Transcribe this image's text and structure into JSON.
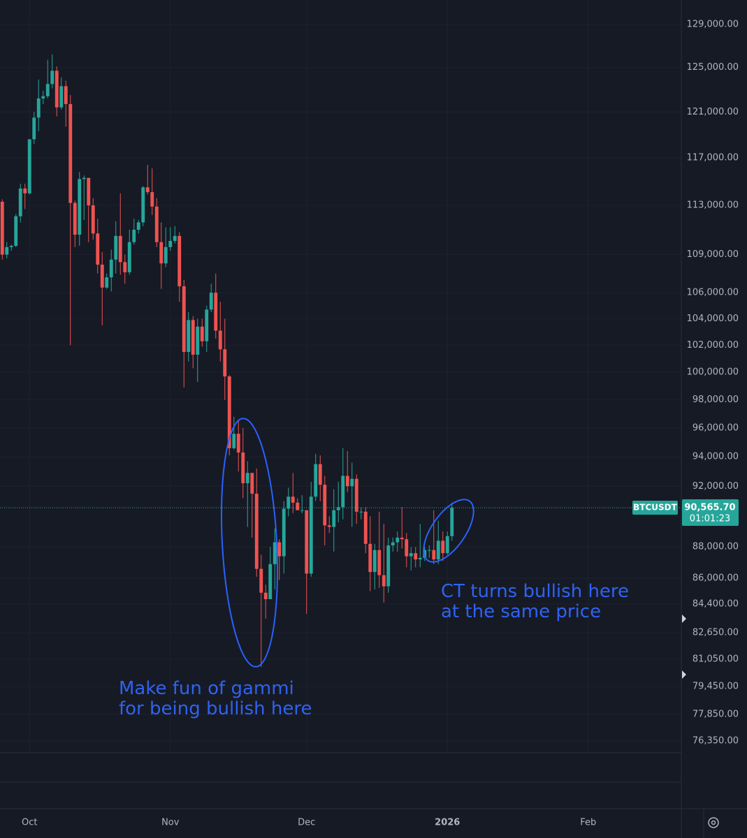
{
  "chart_data": {
    "type": "candlestick",
    "symbol": "BTCUSDT",
    "last_price_label": "90,565.70",
    "countdown": "01:01:23",
    "up_color": "#26a69a",
    "down_color": "#ef5350",
    "log_y": true,
    "grid": true,
    "x": [
      -6,
      -5,
      -4,
      -3,
      -2,
      -1,
      0,
      1,
      2,
      3,
      4,
      5,
      6,
      7,
      8,
      9,
      10,
      11,
      12,
      13,
      14,
      15,
      16,
      17,
      18,
      19,
      20,
      21,
      22,
      23,
      24,
      25,
      26,
      27,
      28,
      29,
      30,
      31,
      32,
      33,
      34,
      35,
      36,
      37,
      38,
      39,
      40,
      41,
      42,
      43,
      44,
      45,
      46,
      47,
      48,
      49,
      50,
      51,
      52,
      53,
      54,
      55,
      56,
      57,
      58,
      59,
      60,
      61,
      62,
      63,
      64,
      65,
      66,
      67,
      68,
      69,
      70,
      71,
      72,
      73,
      74,
      75,
      76,
      77,
      78,
      79,
      80,
      81,
      82,
      83,
      84,
      85,
      86,
      87,
      88,
      89,
      90,
      91,
      92,
      93
    ],
    "open": [
      113300,
      109000,
      109600,
      109700,
      112100,
      114400,
      114000,
      118600,
      120500,
      122200,
      122400,
      123500,
      124700,
      121400,
      123300,
      121700,
      113200,
      110600,
      115200,
      115300,
      113000,
      110700,
      108200,
      106400,
      107200,
      108600,
      110500,
      108400,
      107600,
      110000,
      111000,
      111600,
      114500,
      114100,
      112900,
      110000,
      108300,
      109600,
      110100,
      110500,
      106500,
      101500,
      103900,
      101300,
      103400,
      102300,
      104700,
      106000,
      103100,
      101700,
      99700,
      94600,
      95600,
      94300,
      92200,
      92900,
      91500,
      86600,
      85100,
      84700,
      86900,
      88300,
      87400,
      90500,
      91300,
      90900,
      90400,
      90400,
      86300,
      91300,
      93500,
      92100,
      89400,
      89300,
      90400,
      90600,
      92700,
      92000,
      92500,
      90300,
      90300,
      88200,
      86400,
      87800,
      86200,
      85500,
      88100,
      88300,
      88600,
      88500,
      87400,
      87600,
      87200,
      87300,
      87800,
      87800,
      87200,
      88400,
      87600,
      88700
    ],
    "high": [
      113500,
      110000,
      109800,
      112300,
      114800,
      114800,
      118600,
      121000,
      123900,
      122900,
      125700,
      126200,
      125100,
      124100,
      123800,
      122500,
      113400,
      115800,
      115500,
      115300,
      113600,
      111900,
      109200,
      107500,
      109400,
      111700,
      114000,
      109000,
      111000,
      111900,
      111800,
      114600,
      116400,
      116100,
      113600,
      111600,
      111200,
      111200,
      111300,
      110800,
      107000,
      104500,
      104200,
      104000,
      104000,
      105000,
      106700,
      107500,
      105300,
      104000,
      99800,
      96800,
      96600,
      96000,
      93700,
      92900,
      93200,
      87500,
      85600,
      88000,
      89200,
      88500,
      91000,
      91900,
      92900,
      91200,
      91400,
      90400,
      92300,
      94200,
      94100,
      92700,
      90000,
      91800,
      92300,
      94600,
      94400,
      93600,
      92800,
      90600,
      90600,
      90000,
      88200,
      90300,
      89500,
      88600,
      88600,
      89000,
      90600,
      88900,
      88000,
      88000,
      89500,
      88000,
      88100,
      90400,
      89700,
      89000,
      89000,
      90900
    ],
    "low": [
      108600,
      108700,
      109300,
      109600,
      111600,
      112700,
      113900,
      118200,
      119300,
      121700,
      122200,
      123100,
      120600,
      121200,
      119700,
      102000,
      109600,
      109700,
      111800,
      110000,
      110200,
      107500,
      103500,
      106300,
      106100,
      107500,
      107400,
      106700,
      107400,
      109800,
      110700,
      111300,
      113900,
      112200,
      109600,
      106300,
      108000,
      109300,
      109900,
      105300,
      98900,
      100800,
      100300,
      99300,
      101900,
      101500,
      104500,
      102500,
      100800,
      98000,
      94100,
      94500,
      93000,
      91200,
      89300,
      88600,
      86100,
      80600,
      83500,
      84700,
      85300,
      85900,
      86300,
      90000,
      90200,
      90400,
      90200,
      83800,
      86100,
      91000,
      91000,
      88100,
      88900,
      87700,
      89600,
      89800,
      91600,
      89300,
      89500,
      89800,
      87600,
      85200,
      85300,
      85400,
      84500,
      85100,
      87700,
      87700,
      87900,
      86700,
      86500,
      86700,
      86700,
      87100,
      87300,
      86900,
      86900,
      87100,
      87500,
      88400
    ],
    "close": [
      109000,
      109600,
      109700,
      112100,
      114400,
      114000,
      118600,
      120500,
      122200,
      122400,
      123500,
      124700,
      121400,
      123300,
      121700,
      113200,
      110600,
      115200,
      115300,
      113000,
      110700,
      108200,
      106400,
      107200,
      108600,
      110500,
      108400,
      107600,
      110000,
      111000,
      111600,
      114500,
      114100,
      112900,
      110000,
      108300,
      109600,
      110100,
      110500,
      106500,
      101500,
      103900,
      101300,
      103400,
      102300,
      104700,
      106000,
      103100,
      101700,
      99700,
      94600,
      95600,
      94300,
      92200,
      92900,
      91500,
      86600,
      85100,
      84700,
      86900,
      88300,
      87400,
      90500,
      91300,
      90900,
      90400,
      90400,
      86300,
      91300,
      93500,
      92100,
      89400,
      89300,
      90400,
      90600,
      92700,
      92000,
      92500,
      90300,
      90300,
      88200,
      86400,
      87800,
      86200,
      85500,
      88100,
      88300,
      88600,
      88500,
      87400,
      87600,
      87200,
      87300,
      87800,
      87800,
      87200,
      88400,
      87600,
      88700,
      90565.7
    ],
    "xlim": [
      -6.5,
      143.5
    ],
    "xticks": [
      {
        "value": 0,
        "label": "Oct"
      },
      {
        "value": 31,
        "label": "Nov"
      },
      {
        "value": 61,
        "label": "Dec"
      },
      {
        "value": 92,
        "label": "2026"
      },
      {
        "value": 123,
        "label": "Feb"
      }
    ],
    "ylim": [
      75690,
      131330
    ],
    "yticks": [
      {
        "value": 129000,
        "label": "129,000.00"
      },
      {
        "value": 125000,
        "label": "125,000.00"
      },
      {
        "value": 121000,
        "label": "121,000.00"
      },
      {
        "value": 117000,
        "label": "117,000.00"
      },
      {
        "value": 113000,
        "label": "113,000.00"
      },
      {
        "value": 109000,
        "label": "109,000.00"
      },
      {
        "value": 106000,
        "label": "106,000.00"
      },
      {
        "value": 104000,
        "label": "104,000.00"
      },
      {
        "value": 102000,
        "label": "102,000.00"
      },
      {
        "value": 100000,
        "label": "100,000.00"
      },
      {
        "value": 98000,
        "label": "98,000.00"
      },
      {
        "value": 96000,
        "label": "96,000.00"
      },
      {
        "value": 94000,
        "label": "94,000.00"
      },
      {
        "value": 92000,
        "label": "92,000.00"
      },
      {
        "value": 88000,
        "label": "88,000.00"
      },
      {
        "value": 86000,
        "label": "86,000.00"
      },
      {
        "value": 84400,
        "label": "84,400.00"
      },
      {
        "value": 82650,
        "label": "82,650.00"
      },
      {
        "value": 81050,
        "label": "81,050.00"
      },
      {
        "value": 79450,
        "label": "79,450.00"
      },
      {
        "value": 77850,
        "label": "77,850.00"
      },
      {
        "value": 76350,
        "label": "76,350.00"
      }
    ],
    "annotations": [
      {
        "lines": [
          "Make fun of gammi",
          "for being bullish here"
        ]
      },
      {
        "lines": [
          "CT turns bullish here",
          "at the same price"
        ]
      }
    ]
  }
}
